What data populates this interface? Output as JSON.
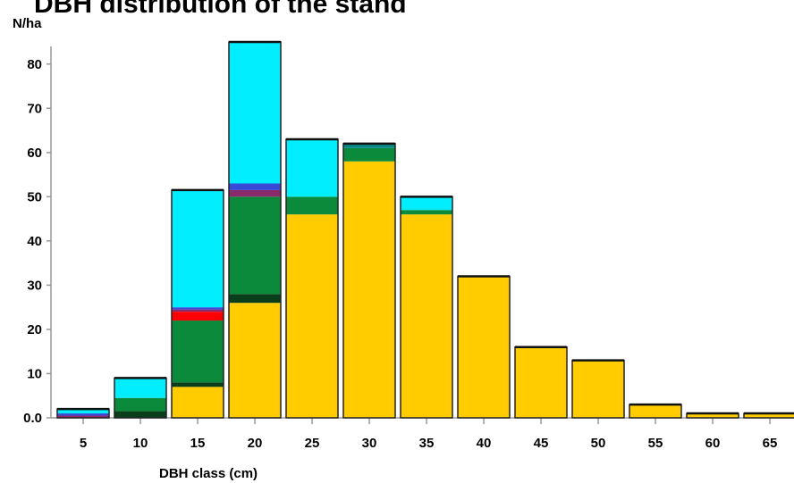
{
  "chart_data": {
    "type": "bar",
    "stacked": true,
    "title": "DBH distribution of the stand",
    "ylabel": "N/ha",
    "xlabel": "DBH class (cm)",
    "categories": [
      "5",
      "10",
      "15",
      "20",
      "25",
      "30",
      "35",
      "40",
      "45",
      "50",
      "55",
      "60",
      "65"
    ],
    "ylim": [
      0,
      85
    ],
    "yticks": [
      "0.0",
      "10",
      "20",
      "30",
      "40",
      "50",
      "60",
      "70",
      "80"
    ],
    "legend": "none",
    "grid": false,
    "series": [
      {
        "color": "#ffcc00",
        "values": [
          0,
          0,
          7,
          26,
          46,
          58,
          46,
          32,
          16,
          13,
          3,
          1,
          1
        ]
      },
      {
        "color": "#0a3d1a",
        "values": [
          0,
          1.5,
          1,
          2,
          0,
          0,
          0,
          0,
          0,
          0,
          0,
          0,
          0
        ]
      },
      {
        "color": "#0a8a3a",
        "values": [
          0,
          3,
          14,
          22,
          4,
          3,
          1,
          0,
          0,
          0,
          0,
          0,
          0
        ]
      },
      {
        "color": "#ff0000",
        "values": [
          0,
          0,
          2,
          0,
          0,
          0,
          0,
          0,
          0,
          0,
          0,
          0,
          0
        ]
      },
      {
        "color": "#8a2a6a",
        "values": [
          0.5,
          0,
          0.5,
          1.5,
          0,
          0,
          0,
          0,
          0,
          0,
          0,
          0,
          0
        ]
      },
      {
        "color": "#3a4ad8",
        "values": [
          0.5,
          0,
          0.5,
          1.5,
          0,
          0,
          0,
          0,
          0,
          0,
          0,
          0,
          0
        ]
      },
      {
        "color": "#0a8888",
        "values": [
          0,
          0,
          0,
          0,
          0,
          1,
          0,
          0,
          0,
          0,
          0,
          0,
          0
        ]
      },
      {
        "color": "#00eeff",
        "values": [
          1,
          4.5,
          26.5,
          32,
          13,
          0,
          3,
          0,
          0,
          0,
          0,
          0,
          0
        ]
      }
    ]
  }
}
